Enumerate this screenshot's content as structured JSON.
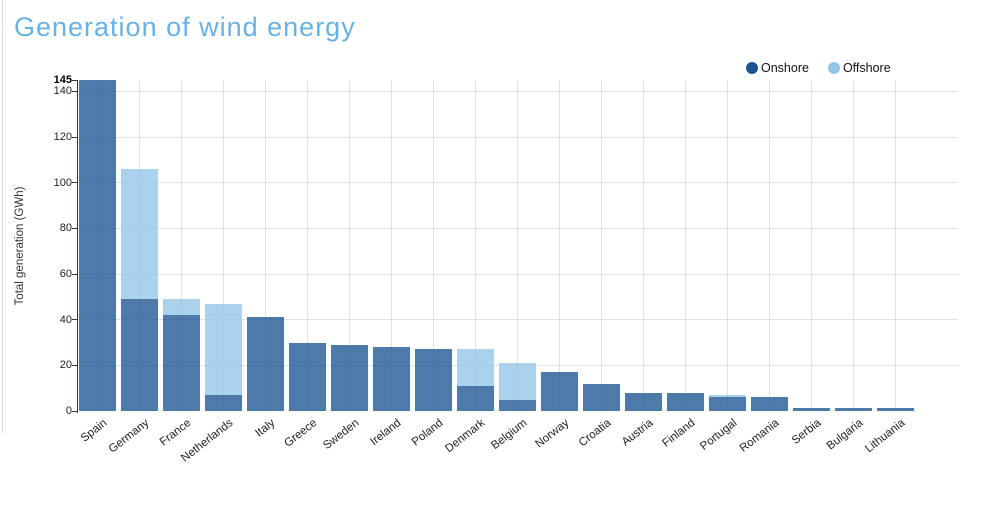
{
  "title": "Generation of wind energy",
  "colors": {
    "title_accent": "#68b2e3",
    "legend_onshore": "#1b5490",
    "legend_offshore": "#92c5e8",
    "bar_onshore": "rgba(27,84,144,0.78)",
    "bar_offshore": "rgba(146,197,232,0.78)",
    "grid": "#e2e2e2"
  },
  "legend": {
    "items": [
      {
        "label": "Onshore",
        "color": "#1b5490"
      },
      {
        "label": "Offshore",
        "color": "#92c5e8"
      }
    ]
  },
  "y_axis": {
    "title": "Total generation (GWh)",
    "ticks": [
      0,
      20,
      40,
      60,
      80,
      100,
      120,
      140
    ],
    "max_annotation": {
      "value": 145,
      "label": "145"
    }
  },
  "chart_data": {
    "type": "bar",
    "stacked": true,
    "title": "Generation of wind energy",
    "xlabel": "",
    "ylabel": "Total generation (GWh)",
    "ylim": [
      0,
      145
    ],
    "grid": true,
    "legend_position": "top-right",
    "categories": [
      "Spain",
      "Germany",
      "France",
      "Netherlands",
      "Italy",
      "Greece",
      "Sweden",
      "Ireland",
      "Poland",
      "Denmark",
      "Belgium",
      "Norway",
      "Croatia",
      "Austria",
      "Finland",
      "Portugal",
      "Romania",
      "Serbia",
      "Bulgaria",
      "Lithuania"
    ],
    "series": [
      {
        "name": "Onshore",
        "color": "#1b5490",
        "values": [
          145,
          49,
          42,
          7,
          41,
          30,
          29,
          28,
          27,
          11,
          5,
          17,
          12,
          8,
          8,
          6,
          6,
          1.5,
          1.5,
          1.5
        ]
      },
      {
        "name": "Offshore",
        "color": "#92c5e8",
        "values": [
          0,
          57,
          7,
          40,
          0,
          0,
          0,
          0,
          0,
          16,
          16,
          0,
          0,
          0,
          0,
          1,
          0,
          0,
          0,
          0
        ]
      }
    ]
  }
}
